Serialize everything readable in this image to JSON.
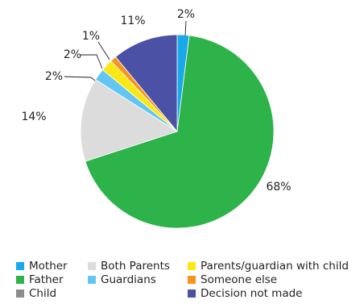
{
  "chart_data": {
    "type": "pie",
    "title": "",
    "slices": [
      {
        "label": "Mother",
        "value": 2,
        "display": "2%",
        "color": "#1aa9e8"
      },
      {
        "label": "Father",
        "value": 68,
        "display": "68%",
        "color": "#2db34a"
      },
      {
        "label": "Both Parents",
        "value": 14,
        "display": "14%",
        "color": "#dcdcdc"
      },
      {
        "label": "Guardians",
        "value": 2,
        "display": "2%",
        "color": "#63c6f0"
      },
      {
        "label": "Parents/guardian with child",
        "value": 2,
        "display": "2%",
        "color": "#f9e814"
      },
      {
        "label": "Someone else",
        "value": 1,
        "display": "1%",
        "color": "#f7941d"
      },
      {
        "label": "Decision not made",
        "value": 11,
        "display": "11%",
        "color": "#4b51a4"
      },
      {
        "label": "Child",
        "value": 0,
        "display": "",
        "color": "#8c8c8c"
      }
    ],
    "legend_position": "bottom"
  },
  "legend": [
    {
      "label": "Mother",
      "color": "#1aa9e8"
    },
    {
      "label": "Father",
      "color": "#2db34a"
    },
    {
      "label": "Child",
      "color": "#8c8c8c"
    },
    {
      "label": "Both Parents",
      "color": "#dcdcdc"
    },
    {
      "label": "Guardians",
      "color": "#63c6f0"
    },
    {
      "label": "Parents/guardian with child",
      "color": "#f9e814"
    },
    {
      "label": "Someone else",
      "color": "#f7941d"
    },
    {
      "label": "Decision not made",
      "color": "#4b51a4"
    }
  ]
}
